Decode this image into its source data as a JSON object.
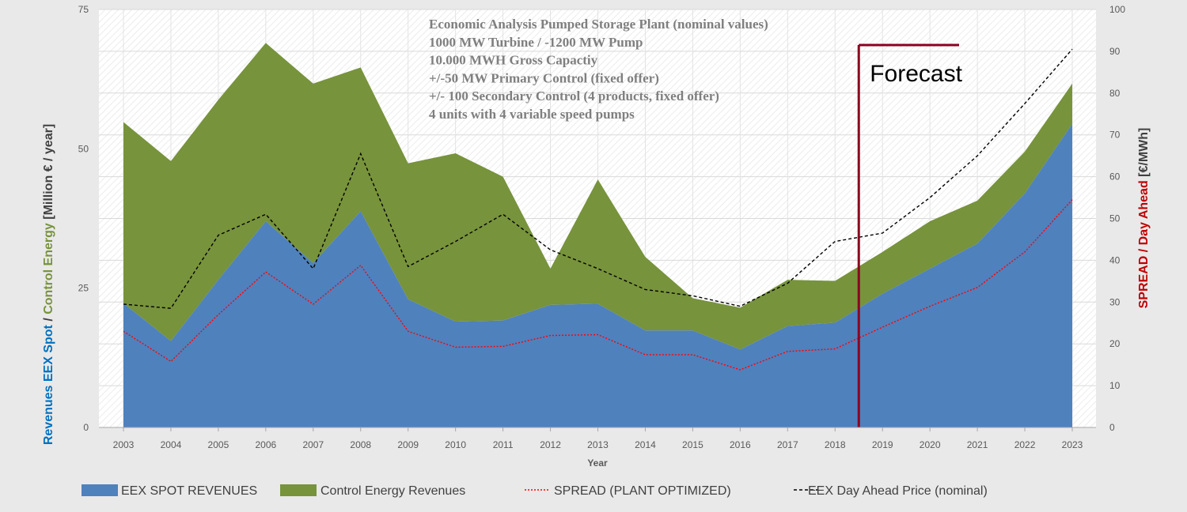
{
  "chart_data": {
    "type": "area",
    "x": [
      2003,
      2004,
      2005,
      2006,
      2007,
      2008,
      2009,
      2010,
      2011,
      2012,
      2013,
      2014,
      2015,
      2016,
      2017,
      2018,
      2019,
      2020,
      2021,
      2022,
      2023
    ],
    "x_tick_labels": [
      "2003",
      "2004",
      "2005",
      "2006",
      "2007",
      "2008",
      "2009",
      "2010",
      "2011",
      "2012",
      "2013",
      "2014",
      "2015",
      "2016",
      "2017",
      "2018",
      "2019",
      "2020",
      "2021",
      "2022",
      "2023"
    ],
    "xlabel": "Year",
    "ylabel_left_parts": [
      "Revenues EEX Spot",
      " / ",
      "Control Energy",
      " [Million € / year]"
    ],
    "ylabel_right_parts": [
      "SPREAD / Day Ahead",
      " [€/MWh]"
    ],
    "ylim_left": [
      0,
      75
    ],
    "ylim_right": [
      0,
      100
    ],
    "yticks_left": [
      "0",
      "25",
      "50",
      "75"
    ],
    "yticks_right": [
      "0",
      "10",
      "20",
      "30",
      "40",
      "50",
      "60",
      "70",
      "80",
      "90",
      "100"
    ],
    "grid": true,
    "legend_position": "bottom",
    "series": [
      {
        "name": "EEX SPOT REVENUES",
        "axis": "left",
        "kind": "area",
        "color": "#4f81bd",
        "values": [
          22.3,
          15.5,
          26.5,
          37.0,
          29.5,
          38.8,
          23.0,
          19.0,
          19.2,
          22.0,
          22.2,
          17.4,
          17.4,
          14.0,
          18.2,
          18.8,
          24.0,
          28.5,
          33.0,
          42.0,
          54.5
        ]
      },
      {
        "name": "Control Energy Revenues",
        "axis": "left",
        "kind": "stacked-area",
        "color": "#77933c",
        "values": [
          32.5,
          32.3,
          32.3,
          32.0,
          32.2,
          25.8,
          24.4,
          30.2,
          25.8,
          6.5,
          22.3,
          13.2,
          5.8,
          7.5,
          8.3,
          7.5,
          7.5,
          8.5,
          7.7,
          7.5,
          7.2
        ]
      },
      {
        "name": "SPREAD (PLANT OPTIMIZED)",
        "axis": "right",
        "kind": "line",
        "color": "#ff0000",
        "dash": "dotted",
        "values": [
          23.0,
          15.8,
          27.0,
          37.2,
          29.5,
          38.8,
          23.0,
          19.2,
          19.4,
          22.0,
          22.2,
          17.4,
          17.4,
          13.8,
          18.2,
          18.8,
          24.0,
          29.0,
          33.5,
          42.0,
          54.5
        ]
      },
      {
        "name": "EEX Day Ahead Price (nominal)",
        "axis": "right",
        "kind": "line",
        "color": "#000000",
        "dash": "dashed",
        "values": [
          29.5,
          28.5,
          46.0,
          51.0,
          38.0,
          65.5,
          38.5,
          44.5,
          51.0,
          42.5,
          38.0,
          33.0,
          31.5,
          29.0,
          34.5,
          44.5,
          46.5,
          55.0,
          65.0,
          77.5,
          90.5
        ]
      }
    ],
    "annotations": {
      "notes": [
        "Economic Analysis Pumped Storage Plant  (nominal values)",
        "1000  MW Turbine / -1200  MW Pump",
        "10.000  MWH Gross Capactiy",
        "+/-50 MW Primary Control   (fixed offer)",
        "+/- 100  Secondary Control (4 products, fixed offer)",
        "4 units with 4 variable speed pumps"
      ],
      "forecast_label": "Forecast",
      "forecast_start_x": 2018.5
    }
  },
  "colors": {
    "left_label_blue": "#0070c0",
    "left_label_green": "#77933c",
    "right_label_red": "#c00000",
    "forecast_marker": "#8b0020"
  }
}
